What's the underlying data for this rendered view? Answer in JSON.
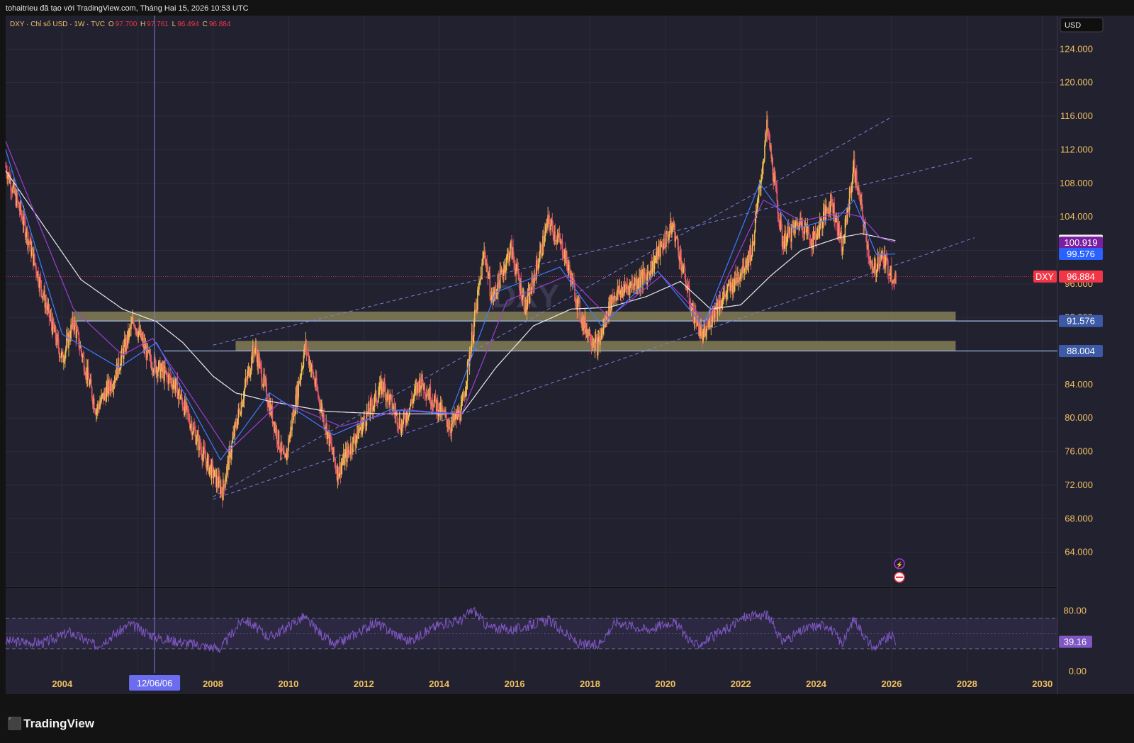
{
  "header": {
    "title": "tohaitrieu đã tạo với TradingView.com, Tháng Hai 15, 2026 10:53 UTC"
  },
  "legend": {
    "symbol": "DXY · Chỉ số USD · 1W · TVC",
    "o_label": "O",
    "o_value": "97.700",
    "h_label": "H",
    "h_value": "97.761",
    "l_label": "L",
    "l_value": "96.494",
    "c_label": "C",
    "c_value": "96.884"
  },
  "watermark": "DXY",
  "currency": "USD",
  "crosshair_date": "12/06/06",
  "branding": "TradingView",
  "price_tags": [
    {
      "label": "101.146",
      "value": 101.146,
      "bg": "#f0f0f0",
      "fg": "#131722"
    },
    {
      "label": "100.919",
      "value": 100.919,
      "bg": "#7b1fa2",
      "fg": "#ffffff"
    },
    {
      "label": "99.576",
      "value": 99.576,
      "bg": "#2962ff",
      "fg": "#ffffff"
    },
    {
      "label": "96.884",
      "value": 96.884,
      "bg": "#f23645",
      "fg": "#ffffff",
      "symbol": "DXY"
    },
    {
      "label": "91.576",
      "value": 91.576,
      "bg": "#3c5aa8",
      "fg": "#ffffff"
    },
    {
      "label": "88.004",
      "value": 88.004,
      "bg": "#3c5aa8",
      "fg": "#ffffff"
    }
  ],
  "rsi_value": "39.16",
  "colors": {
    "background": "#222130",
    "grid": "#2e2d3c",
    "candle_up": "#f0c050",
    "candle_down": "#e85a6a",
    "ema_blue": "#3d7bff",
    "ema_purple": "#9b3fd0",
    "sma_white": "#e8e8e8",
    "channel": "#7b7fd8",
    "zone": "#8a8458",
    "rsi": "#7e57c2",
    "axis_text": "#f0c060"
  },
  "chart_data": {
    "type": "candlestick",
    "symbol": "DXY",
    "timeframe": "1W",
    "ylim": [
      60,
      128
    ],
    "xlim": [
      2002.5,
      2030.4
    ],
    "y_ticks": [
      "124.000",
      "120.000",
      "116.000",
      "112.000",
      "108.000",
      "104.000",
      "100.000",
      "96.000",
      "92.000",
      "88.000",
      "84.000",
      "80.000",
      "76.000",
      "72.000",
      "68.000",
      "64.000"
    ],
    "x_ticks": [
      "2004",
      "2006",
      "2008",
      "2010",
      "2012",
      "2014",
      "2016",
      "2018",
      "2020",
      "2022",
      "2024",
      "2026",
      "2028",
      "2030"
    ],
    "price_path": [
      [
        2002.5,
        110
      ],
      [
        2003.0,
        103
      ],
      [
        2003.6,
        93
      ],
      [
        2004.0,
        87
      ],
      [
        2004.3,
        91.5
      ],
      [
        2004.9,
        81
      ],
      [
        2005.4,
        85
      ],
      [
        2005.9,
        91.7
      ],
      [
        2006.3,
        87
      ],
      [
        2007.0,
        84
      ],
      [
        2007.8,
        75
      ],
      [
        2008.25,
        71.3
      ],
      [
        2008.6,
        79
      ],
      [
        2009.1,
        88.5
      ],
      [
        2009.9,
        74.5
      ],
      [
        2010.45,
        88.7
      ],
      [
        2011.3,
        73.5
      ],
      [
        2012.5,
        84
      ],
      [
        2013.0,
        79
      ],
      [
        2013.5,
        84.5
      ],
      [
        2014.3,
        79
      ],
      [
        2014.6,
        81
      ],
      [
        2015.2,
        100
      ],
      [
        2015.4,
        94
      ],
      [
        2015.9,
        100.3
      ],
      [
        2016.3,
        93
      ],
      [
        2016.9,
        103.5
      ],
      [
        2017.3,
        100
      ],
      [
        2017.8,
        91.5
      ],
      [
        2018.2,
        88.5
      ],
      [
        2018.6,
        94.5
      ],
      [
        2019.5,
        97
      ],
      [
        2020.2,
        103
      ],
      [
        2020.7,
        93
      ],
      [
        2021.0,
        89.5
      ],
      [
        2021.3,
        93
      ],
      [
        2021.8,
        96
      ],
      [
        2022.3,
        100
      ],
      [
        2022.7,
        114.8
      ],
      [
        2023.1,
        101
      ],
      [
        2023.6,
        103.5
      ],
      [
        2023.9,
        101
      ],
      [
        2024.4,
        106
      ],
      [
        2024.7,
        100.5
      ],
      [
        2025.0,
        110
      ],
      [
        2025.5,
        97
      ],
      [
        2025.7,
        99.5
      ],
      [
        2026.05,
        96.9
      ],
      [
        2026.12,
        96.884
      ]
    ],
    "ema_blue_path": [
      [
        2002.5,
        112
      ],
      [
        2004.0,
        90
      ],
      [
        2005.5,
        86
      ],
      [
        2006.5,
        89
      ],
      [
        2008.2,
        75
      ],
      [
        2009.5,
        83
      ],
      [
        2011.2,
        78
      ],
      [
        2012.7,
        81
      ],
      [
        2014.3,
        80.5
      ],
      [
        2015.5,
        95
      ],
      [
        2017.2,
        98
      ],
      [
        2018.3,
        91
      ],
      [
        2019.8,
        97.5
      ],
      [
        2021.0,
        91
      ],
      [
        2022.5,
        108
      ],
      [
        2023.4,
        102.5
      ],
      [
        2024.6,
        104
      ],
      [
        2025.0,
        106
      ],
      [
        2025.6,
        99.5
      ],
      [
        2026.12,
        99.576
      ]
    ],
    "ema_purple_path": [
      [
        2002.5,
        113
      ],
      [
        2004.3,
        93
      ],
      [
        2005.6,
        87.5
      ],
      [
        2006.4,
        89.5
      ],
      [
        2008.4,
        76
      ],
      [
        2009.8,
        82
      ],
      [
        2011.4,
        79
      ],
      [
        2013.0,
        81
      ],
      [
        2014.6,
        80.5
      ],
      [
        2015.8,
        94
      ],
      [
        2017.4,
        97
      ],
      [
        2018.5,
        92
      ],
      [
        2019.9,
        97
      ],
      [
        2021.1,
        91.5
      ],
      [
        2022.6,
        106
      ],
      [
        2023.6,
        103.5
      ],
      [
        2024.7,
        104.5
      ],
      [
        2025.2,
        104
      ],
      [
        2025.7,
        101.5
      ],
      [
        2026.12,
        100.919
      ]
    ],
    "sma_white_path": [
      [
        2002.5,
        109.5
      ],
      [
        2003.5,
        103
      ],
      [
        2004.5,
        96.5
      ],
      [
        2005.6,
        93
      ],
      [
        2006.5,
        91.5
      ],
      [
        2007.2,
        89
      ],
      [
        2008.0,
        85
      ],
      [
        2008.6,
        83
      ],
      [
        2009.5,
        82
      ],
      [
        2011.0,
        80.8
      ],
      [
        2012.5,
        80.5
      ],
      [
        2013.5,
        80.5
      ],
      [
        2014.6,
        80.5
      ],
      [
        2015.5,
        86
      ],
      [
        2016.5,
        91
      ],
      [
        2017.5,
        93
      ],
      [
        2018.5,
        93.2
      ],
      [
        2019.5,
        94.5
      ],
      [
        2020.4,
        96.3
      ],
      [
        2021.2,
        93
      ],
      [
        2022.0,
        93.5
      ],
      [
        2022.8,
        97
      ],
      [
        2023.6,
        100
      ],
      [
        2024.6,
        101.5
      ],
      [
        2025.2,
        102
      ],
      [
        2026.12,
        101.146
      ]
    ],
    "channel_lines": [
      {
        "from": [
          2008.0,
          70.6
        ],
        "to": [
          2026.0,
          115.9
        ]
      },
      {
        "from": [
          2008.0,
          88.7
        ],
        "to": [
          2028.2,
          111.1
        ]
      },
      {
        "from": [
          2008.0,
          70.3
        ],
        "to": [
          2028.2,
          101.5
        ]
      }
    ],
    "zones": [
      {
        "x0": 2004.3,
        "x1": 2027.7,
        "y0": 91.6,
        "y1": 92.7
      },
      {
        "x0": 2008.6,
        "x1": 2027.7,
        "y0": 88.0,
        "y1": 89.2
      }
    ],
    "horizontal_lines": [
      91.576,
      88.004
    ],
    "current_price": 96.884,
    "crosshair_x": 2006.45,
    "rsi": {
      "ylim": [
        0,
        100
      ],
      "ticks": [
        "80.00",
        "40.00",
        "0.00"
      ],
      "upper": 70,
      "lower": 30,
      "value": 39.16,
      "path": [
        [
          2002.5,
          40
        ],
        [
          2003.5,
          38
        ],
        [
          2004.2,
          52
        ],
        [
          2004.9,
          34
        ],
        [
          2005.8,
          62
        ],
        [
          2006.5,
          45
        ],
        [
          2007.5,
          36
        ],
        [
          2008.2,
          30
        ],
        [
          2008.8,
          70
        ],
        [
          2009.5,
          45
        ],
        [
          2010.4,
          72
        ],
        [
          2011.2,
          34
        ],
        [
          2012.3,
          64
        ],
        [
          2013.2,
          40
        ],
        [
          2014.0,
          62
        ],
        [
          2014.6,
          68
        ],
        [
          2014.9,
          82
        ],
        [
          2015.3,
          58
        ],
        [
          2016.0,
          55
        ],
        [
          2016.9,
          68
        ],
        [
          2017.7,
          36
        ],
        [
          2018.2,
          34
        ],
        [
          2018.7,
          66
        ],
        [
          2019.5,
          55
        ],
        [
          2020.2,
          66
        ],
        [
          2020.8,
          34
        ],
        [
          2021.5,
          52
        ],
        [
          2022.1,
          72
        ],
        [
          2022.7,
          75
        ],
        [
          2023.1,
          40
        ],
        [
          2023.8,
          58
        ],
        [
          2024.3,
          62
        ],
        [
          2024.7,
          36
        ],
        [
          2025.0,
          70
        ],
        [
          2025.5,
          30
        ],
        [
          2026.0,
          48
        ],
        [
          2026.12,
          39.16
        ]
      ]
    }
  }
}
